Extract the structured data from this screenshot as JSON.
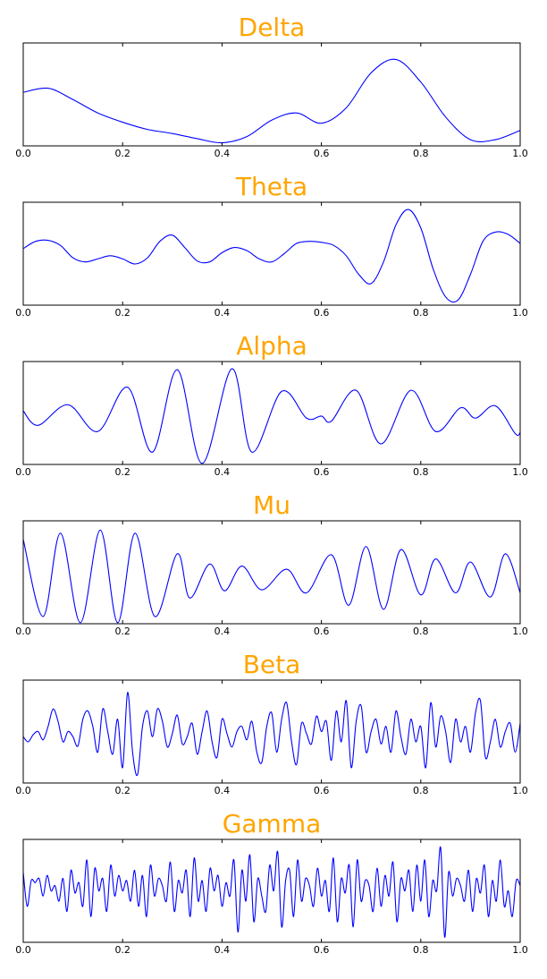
{
  "chart_data": [
    {
      "type": "line",
      "title": "Delta",
      "color": "#0000ff",
      "xlim": [
        0,
        1
      ],
      "ylim": [
        0,
        1
      ],
      "xticks": [
        {
          "value": 0,
          "label": "0.0"
        },
        {
          "value": 0.2,
          "label": "0.2"
        },
        {
          "value": 0.4,
          "label": "0.4"
        },
        {
          "value": 0.6,
          "label": "0.6"
        },
        {
          "value": 0.8,
          "label": "0.8"
        },
        {
          "value": 1,
          "label": "1.0"
        }
      ],
      "x": [
        0,
        0.05,
        0.1,
        0.15,
        0.2,
        0.25,
        0.3,
        0.35,
        0.4,
        0.45,
        0.5,
        0.55,
        0.6,
        0.65,
        0.7,
        0.75,
        0.8,
        0.85,
        0.9,
        0.95,
        1
      ],
      "values": [
        0.52,
        0.56,
        0.45,
        0.32,
        0.23,
        0.16,
        0.12,
        0.07,
        0.03,
        0.09,
        0.25,
        0.32,
        0.22,
        0.37,
        0.71,
        0.84,
        0.62,
        0.28,
        0.06,
        0.06,
        0.15
      ]
    },
    {
      "type": "line",
      "title": "Theta",
      "color": "#0000ff",
      "xlim": [
        0,
        1
      ],
      "ylim": [
        0,
        1
      ],
      "xticks": [
        {
          "value": 0,
          "label": "0.0"
        },
        {
          "value": 0.2,
          "label": "0.2"
        },
        {
          "value": 0.4,
          "label": "0.4"
        },
        {
          "value": 0.6,
          "label": "0.6"
        },
        {
          "value": 0.8,
          "label": "0.8"
        },
        {
          "value": 1,
          "label": "1.0"
        }
      ],
      "x": [
        0,
        0.025,
        0.05,
        0.075,
        0.1,
        0.125,
        0.15,
        0.175,
        0.2,
        0.225,
        0.25,
        0.275,
        0.3,
        0.325,
        0.35,
        0.375,
        0.4,
        0.425,
        0.45,
        0.475,
        0.5,
        0.525,
        0.55,
        0.575,
        0.6,
        0.625,
        0.65,
        0.675,
        0.7,
        0.725,
        0.75,
        0.775,
        0.8,
        0.825,
        0.85,
        0.875,
        0.9,
        0.925,
        0.95,
        0.975,
        1
      ],
      "values": [
        0.55,
        0.62,
        0.63,
        0.58,
        0.46,
        0.42,
        0.45,
        0.48,
        0.45,
        0.4,
        0.46,
        0.62,
        0.68,
        0.56,
        0.43,
        0.42,
        0.51,
        0.56,
        0.53,
        0.45,
        0.42,
        0.5,
        0.6,
        0.62,
        0.61,
        0.58,
        0.48,
        0.3,
        0.21,
        0.42,
        0.78,
        0.93,
        0.75,
        0.35,
        0.08,
        0.05,
        0.3,
        0.62,
        0.71,
        0.69,
        0.6
      ]
    },
    {
      "type": "line",
      "title": "Alpha",
      "color": "#0000ff",
      "xlim": [
        0,
        1
      ],
      "ylim": [
        0,
        1
      ],
      "xticks": [
        {
          "value": 0,
          "label": "0.0"
        },
        {
          "value": 0.2,
          "label": "0.2"
        },
        {
          "value": 0.4,
          "label": "0.4"
        },
        {
          "value": 0.6,
          "label": "0.6"
        },
        {
          "value": 0.8,
          "label": "0.8"
        },
        {
          "value": 1,
          "label": "1.0"
        }
      ],
      "x": [
        0,
        0.03,
        0.09,
        0.15,
        0.21,
        0.26,
        0.31,
        0.36,
        0.42,
        0.46,
        0.52,
        0.57,
        0.6,
        0.62,
        0.67,
        0.72,
        0.78,
        0.83,
        0.88,
        0.91,
        0.95,
        0.99,
        1
      ],
      "values": [
        0.52,
        0.38,
        0.58,
        0.32,
        0.75,
        0.12,
        0.92,
        0.01,
        0.93,
        0.12,
        0.71,
        0.45,
        0.47,
        0.42,
        0.72,
        0.2,
        0.72,
        0.32,
        0.55,
        0.45,
        0.57,
        0.3,
        0.31
      ]
    },
    {
      "type": "line",
      "title": "Mu",
      "color": "#0000ff",
      "xlim": [
        0,
        1
      ],
      "ylim": [
        0,
        1
      ],
      "xticks": [
        {
          "value": 0,
          "label": "0.0"
        },
        {
          "value": 0.2,
          "label": "0.2"
        },
        {
          "value": 0.4,
          "label": "0.4"
        },
        {
          "value": 0.6,
          "label": "0.6"
        },
        {
          "value": 0.8,
          "label": "0.8"
        },
        {
          "value": 1,
          "label": "1.0"
        }
      ],
      "x": [
        0,
        0.04,
        0.075,
        0.115,
        0.155,
        0.19,
        0.225,
        0.265,
        0.31,
        0.335,
        0.375,
        0.405,
        0.44,
        0.48,
        0.53,
        0.57,
        0.62,
        0.655,
        0.69,
        0.725,
        0.76,
        0.8,
        0.83,
        0.87,
        0.9,
        0.94,
        0.97,
        1
      ],
      "values": [
        0.82,
        0.07,
        0.88,
        0.01,
        0.91,
        0.01,
        0.88,
        0.07,
        0.68,
        0.25,
        0.58,
        0.32,
        0.56,
        0.33,
        0.53,
        0.3,
        0.67,
        0.18,
        0.75,
        0.14,
        0.72,
        0.28,
        0.63,
        0.3,
        0.6,
        0.26,
        0.68,
        0.3
      ]
    },
    {
      "type": "line",
      "title": "Beta",
      "color": "#0000ff",
      "xlim": [
        0,
        1
      ],
      "ylim": [
        0,
        1
      ],
      "xticks": [
        {
          "value": 0,
          "label": "0.0"
        },
        {
          "value": 0.2,
          "label": "0.2"
        },
        {
          "value": 0.4,
          "label": "0.4"
        },
        {
          "value": 0.6,
          "label": "0.6"
        },
        {
          "value": 0.8,
          "label": "0.8"
        },
        {
          "value": 1,
          "label": "1.0"
        }
      ],
      "x": [
        0,
        0.01,
        0.02,
        0.03,
        0.04,
        0.05,
        0.06,
        0.07,
        0.08,
        0.09,
        0.1,
        0.11,
        0.12,
        0.13,
        0.14,
        0.15,
        0.16,
        0.17,
        0.18,
        0.19,
        0.2,
        0.21,
        0.22,
        0.23,
        0.24,
        0.25,
        0.26,
        0.27,
        0.28,
        0.29,
        0.3,
        0.31,
        0.32,
        0.33,
        0.34,
        0.35,
        0.36,
        0.37,
        0.38,
        0.39,
        0.4,
        0.41,
        0.42,
        0.43,
        0.44,
        0.45,
        0.46,
        0.47,
        0.48,
        0.49,
        0.5,
        0.51,
        0.52,
        0.53,
        0.54,
        0.55,
        0.56,
        0.57,
        0.58,
        0.59,
        0.6,
        0.61,
        0.62,
        0.63,
        0.64,
        0.65,
        0.66,
        0.67,
        0.68,
        0.69,
        0.7,
        0.71,
        0.72,
        0.73,
        0.74,
        0.75,
        0.76,
        0.77,
        0.78,
        0.79,
        0.8,
        0.81,
        0.82,
        0.83,
        0.84,
        0.85,
        0.86,
        0.87,
        0.88,
        0.89,
        0.9,
        0.91,
        0.92,
        0.93,
        0.94,
        0.95,
        0.96,
        0.97,
        0.98,
        0.99,
        1
      ],
      "values": [
        0.45,
        0.4,
        0.47,
        0.5,
        0.42,
        0.55,
        0.72,
        0.6,
        0.4,
        0.5,
        0.45,
        0.36,
        0.62,
        0.7,
        0.55,
        0.3,
        0.72,
        0.5,
        0.28,
        0.62,
        0.15,
        0.88,
        0.3,
        0.08,
        0.55,
        0.7,
        0.45,
        0.72,
        0.6,
        0.35,
        0.48,
        0.66,
        0.38,
        0.45,
        0.58,
        0.28,
        0.5,
        0.7,
        0.4,
        0.25,
        0.62,
        0.48,
        0.35,
        0.5,
        0.55,
        0.42,
        0.6,
        0.3,
        0.2,
        0.55,
        0.68,
        0.3,
        0.62,
        0.78,
        0.4,
        0.18,
        0.58,
        0.48,
        0.38,
        0.65,
        0.5,
        0.6,
        0.22,
        0.7,
        0.4,
        0.8,
        0.15,
        0.6,
        0.75,
        0.3,
        0.5,
        0.62,
        0.38,
        0.55,
        0.3,
        0.7,
        0.45,
        0.28,
        0.62,
        0.4,
        0.55,
        0.15,
        0.78,
        0.35,
        0.65,
        0.5,
        0.2,
        0.62,
        0.4,
        0.55,
        0.3,
        0.68,
        0.8,
        0.25,
        0.4,
        0.62,
        0.35,
        0.5,
        0.58,
        0.3,
        0.58
      ]
    },
    {
      "type": "line",
      "title": "Gamma",
      "color": "#0000ff",
      "xlim": [
        0,
        1
      ],
      "ylim": [
        0,
        1
      ],
      "xticks": [
        {
          "value": 0,
          "label": "0.0"
        },
        {
          "value": 0.2,
          "label": "0.2"
        },
        {
          "value": 0.4,
          "label": "0.4"
        },
        {
          "value": 0.6,
          "label": "0.6"
        },
        {
          "value": 0.8,
          "label": "0.8"
        },
        {
          "value": 1,
          "label": "1.0"
        }
      ],
      "x": [
        0,
        0.008,
        0.016,
        0.024,
        0.032,
        0.04,
        0.048,
        0.056,
        0.064,
        0.072,
        0.08,
        0.088,
        0.096,
        0.104,
        0.112,
        0.12,
        0.128,
        0.136,
        0.144,
        0.152,
        0.16,
        0.168,
        0.176,
        0.184,
        0.192,
        0.2,
        0.208,
        0.216,
        0.224,
        0.232,
        0.24,
        0.248,
        0.256,
        0.264,
        0.272,
        0.28,
        0.288,
        0.296,
        0.304,
        0.312,
        0.32,
        0.328,
        0.336,
        0.344,
        0.352,
        0.36,
        0.368,
        0.376,
        0.384,
        0.392,
        0.4,
        0.408,
        0.416,
        0.424,
        0.432,
        0.44,
        0.448,
        0.456,
        0.464,
        0.472,
        0.48,
        0.488,
        0.496,
        0.504,
        0.512,
        0.52,
        0.528,
        0.536,
        0.544,
        0.552,
        0.56,
        0.568,
        0.576,
        0.584,
        0.592,
        0.6,
        0.608,
        0.616,
        0.624,
        0.632,
        0.64,
        0.648,
        0.656,
        0.664,
        0.672,
        0.68,
        0.688,
        0.696,
        0.704,
        0.712,
        0.72,
        0.728,
        0.736,
        0.744,
        0.752,
        0.76,
        0.768,
        0.776,
        0.784,
        0.792,
        0.8,
        0.808,
        0.816,
        0.824,
        0.832,
        0.84,
        0.848,
        0.856,
        0.864,
        0.872,
        0.88,
        0.888,
        0.896,
        0.904,
        0.912,
        0.92,
        0.928,
        0.936,
        0.944,
        0.952,
        0.96,
        0.968,
        0.976,
        0.984,
        0.992,
        1
      ],
      "values": [
        0.68,
        0.35,
        0.6,
        0.58,
        0.62,
        0.45,
        0.65,
        0.5,
        0.55,
        0.4,
        0.62,
        0.3,
        0.7,
        0.48,
        0.58,
        0.35,
        0.8,
        0.25,
        0.72,
        0.5,
        0.62,
        0.3,
        0.75,
        0.45,
        0.65,
        0.5,
        0.6,
        0.4,
        0.7,
        0.35,
        0.65,
        0.25,
        0.75,
        0.45,
        0.62,
        0.55,
        0.4,
        0.78,
        0.3,
        0.6,
        0.48,
        0.7,
        0.25,
        0.82,
        0.4,
        0.6,
        0.3,
        0.72,
        0.5,
        0.65,
        0.35,
        0.58,
        0.45,
        0.8,
        0.1,
        0.7,
        0.4,
        0.85,
        0.2,
        0.62,
        0.45,
        0.3,
        0.75,
        0.5,
        0.88,
        0.15,
        0.6,
        0.7,
        0.25,
        0.8,
        0.4,
        0.62,
        0.55,
        0.35,
        0.72,
        0.45,
        0.6,
        0.3,
        0.82,
        0.2,
        0.62,
        0.48,
        0.75,
        0.15,
        0.8,
        0.4,
        0.6,
        0.55,
        0.3,
        0.72,
        0.35,
        0.65,
        0.45,
        0.78,
        0.2,
        0.62,
        0.5,
        0.7,
        0.3,
        0.75,
        0.4,
        0.8,
        0.25,
        0.6,
        0.5,
        0.92,
        0.05,
        0.68,
        0.45,
        0.62,
        0.55,
        0.4,
        0.7,
        0.3,
        0.62,
        0.48,
        0.75,
        0.25,
        0.6,
        0.4,
        0.8,
        0.35,
        0.5,
        0.25,
        0.6,
        0.55
      ]
    }
  ]
}
